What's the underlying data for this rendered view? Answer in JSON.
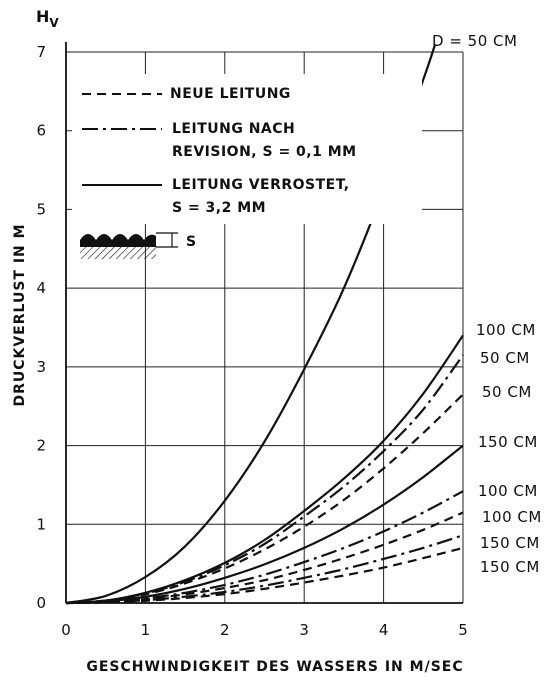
{
  "chart_data": {
    "type": "line",
    "ylabel": "DRUCKVERLUST IN M",
    "ylabel_symbol": "H",
    "ylabel_symbol_sub": "V",
    "xlabel": "GESCHWINDIGKEIT DES WASSERS IN M/SEC",
    "xlim": [
      0,
      5
    ],
    "ylim": [
      0,
      7
    ],
    "xticks": [
      "0",
      "1",
      "2",
      "3",
      "4",
      "5"
    ],
    "yticks": [
      "0",
      "1",
      "2",
      "3",
      "4",
      "5",
      "6",
      "7"
    ],
    "grid": true,
    "legend_position": "top-left",
    "legend": [
      {
        "style": "dashed",
        "lines": [
          "NEUE LEITUNG"
        ]
      },
      {
        "style": "dashdot",
        "lines": [
          "LEITUNG NACH",
          "REVISION, S = 0,1 MM"
        ]
      },
      {
        "style": "solid",
        "lines": [
          "LEITUNG VERROSTET,",
          "S = 3,2 MM"
        ]
      }
    ],
    "roughness_sketch_label": "S",
    "series": [
      {
        "label": "D = 50 CM",
        "style": "solid",
        "x": [
          0,
          0.5,
          1,
          1.5,
          2,
          2.5,
          3,
          3.5,
          4,
          4.5,
          4.65
        ],
        "y": [
          0,
          0.09,
          0.33,
          0.72,
          1.3,
          2.05,
          2.97,
          4.0,
          5.25,
          6.65,
          7.1
        ]
      },
      {
        "label": "100 CM",
        "style": "solid",
        "x": [
          0,
          0.5,
          1,
          1.5,
          2,
          2.5,
          3,
          3.5,
          4,
          4.5,
          5
        ],
        "y": [
          0,
          0.03,
          0.13,
          0.29,
          0.51,
          0.8,
          1.17,
          1.58,
          2.06,
          2.66,
          3.4
        ]
      },
      {
        "label": "50 CM",
        "style": "dashdot",
        "x": [
          0,
          0.5,
          1,
          1.5,
          2,
          2.5,
          3,
          3.5,
          4,
          4.5,
          5
        ],
        "y": [
          0,
          0.03,
          0.12,
          0.27,
          0.48,
          0.75,
          1.1,
          1.48,
          1.93,
          2.46,
          3.15
        ]
      },
      {
        "label": "50 CM",
        "style": "dashed",
        "x": [
          0,
          0.5,
          1,
          1.5,
          2,
          2.5,
          3,
          3.5,
          4,
          4.5,
          5
        ],
        "y": [
          0,
          0.03,
          0.11,
          0.25,
          0.44,
          0.68,
          0.97,
          1.31,
          1.71,
          2.16,
          2.65
        ]
      },
      {
        "label": "150 CM",
        "style": "solid",
        "x": [
          0,
          0.5,
          1,
          1.5,
          2,
          2.5,
          3,
          3.5,
          4,
          4.5,
          5
        ],
        "y": [
          0,
          0.02,
          0.08,
          0.18,
          0.32,
          0.49,
          0.7,
          0.95,
          1.25,
          1.6,
          2.0
        ]
      },
      {
        "label": "100 CM",
        "style": "dashdot",
        "x": [
          0,
          0.5,
          1,
          1.5,
          2,
          2.5,
          3,
          3.5,
          4,
          4.5,
          5
        ],
        "y": [
          0,
          0.015,
          0.06,
          0.13,
          0.23,
          0.36,
          0.52,
          0.7,
          0.91,
          1.15,
          1.42
        ]
      },
      {
        "label": "100 CM",
        "style": "dashed",
        "x": [
          0,
          0.5,
          1,
          1.5,
          2,
          2.5,
          3,
          3.5,
          4,
          4.5,
          5
        ],
        "y": [
          0,
          0.012,
          0.05,
          0.11,
          0.19,
          0.29,
          0.42,
          0.57,
          0.74,
          0.93,
          1.15
        ]
      },
      {
        "label": "150 CM",
        "style": "dashdot",
        "x": [
          0,
          0.5,
          1,
          1.5,
          2,
          2.5,
          3,
          3.5,
          4,
          4.5,
          5
        ],
        "y": [
          0,
          0.009,
          0.036,
          0.08,
          0.14,
          0.22,
          0.32,
          0.43,
          0.56,
          0.7,
          0.86
        ]
      },
      {
        "label": "150 CM",
        "style": "dashed",
        "x": [
          0,
          0.5,
          1,
          1.5,
          2,
          2.5,
          3,
          3.5,
          4,
          4.5,
          5
        ],
        "y": [
          0,
          0.007,
          0.028,
          0.064,
          0.113,
          0.18,
          0.26,
          0.35,
          0.45,
          0.57,
          0.7
        ]
      }
    ]
  }
}
